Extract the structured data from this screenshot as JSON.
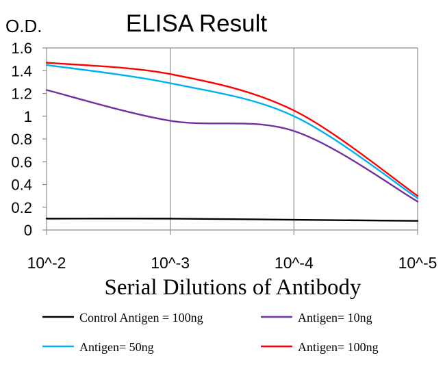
{
  "chart_data": {
    "type": "line",
    "title": "ELISA Result",
    "ylabel": "O.D.",
    "xlabel": "Serial Dilutions of Antibody",
    "x": [
      "10^-2",
      "10^-3",
      "10^-4",
      "10^-5"
    ],
    "ylim": [
      0,
      1.6
    ],
    "y_ticks": [
      "0",
      "0.2",
      "0.4",
      "0.6",
      "0.8",
      "1",
      "1.2",
      "1.4",
      "1.6"
    ],
    "grid": "vertical",
    "legend_position": "bottom",
    "series": [
      {
        "name": "Control Antigen = 100ng",
        "color": "#000000",
        "values": [
          0.1,
          0.1,
          0.09,
          0.08
        ]
      },
      {
        "name": "Antigen= 10ng",
        "color": "#7030a0",
        "values": [
          1.23,
          0.96,
          0.87,
          0.25
        ]
      },
      {
        "name": "Antigen= 50ng",
        "color": "#00b0f0",
        "values": [
          1.45,
          1.29,
          1.0,
          0.28
        ]
      },
      {
        "name": "Antigen= 100ng",
        "color": "#ff0000",
        "values": [
          1.47,
          1.37,
          1.05,
          0.3
        ]
      }
    ]
  }
}
